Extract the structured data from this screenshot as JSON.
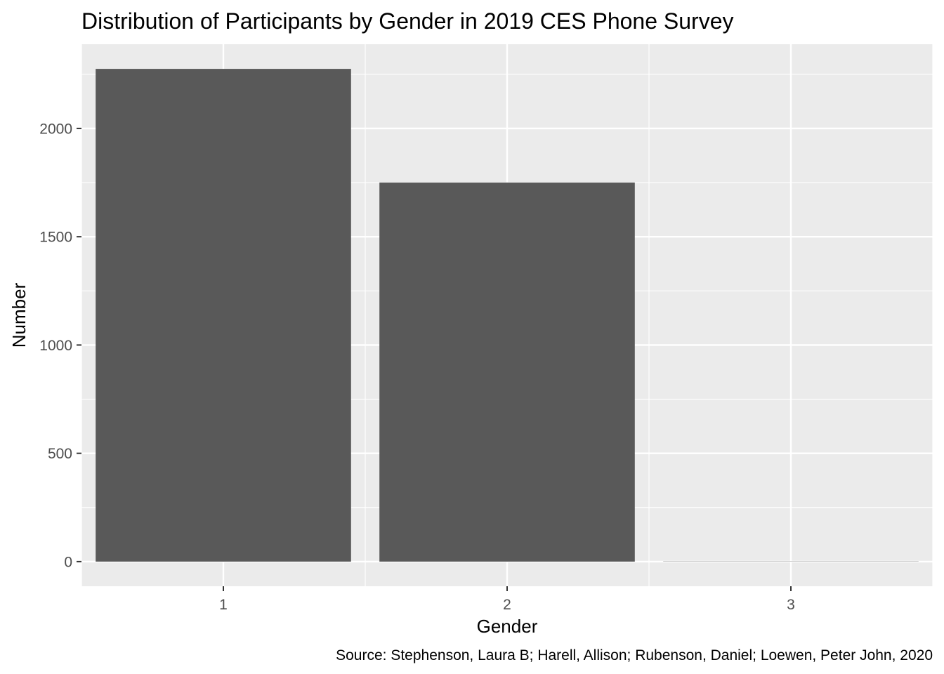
{
  "chart_data": {
    "type": "bar",
    "title": "Distribution of Participants by Gender in 2019 CES Phone Survey",
    "xlabel": "Gender",
    "ylabel": "Number",
    "caption": "Source: Stephenson, Laura B; Harell, Allison; Rubenson, Daniel; Loewen, Peter John, 2020",
    "categories": [
      "1",
      "2",
      "3"
    ],
    "values": [
      2275,
      1750,
      1
    ],
    "xlim": [
      0.5,
      3.5
    ],
    "ylim": [
      -113.75,
      2388.75
    ],
    "yticks": [
      0,
      500,
      1000,
      1500,
      2000
    ],
    "ytick_labels": [
      "0",
      "500",
      "1000",
      "1500",
      "2000"
    ],
    "grid": true,
    "colors": {
      "panel": "#ebebeb",
      "grid": "#ffffff",
      "bar": "#595959",
      "tick_text": "#4d4d4d",
      "tick_mark": "#333333"
    }
  }
}
